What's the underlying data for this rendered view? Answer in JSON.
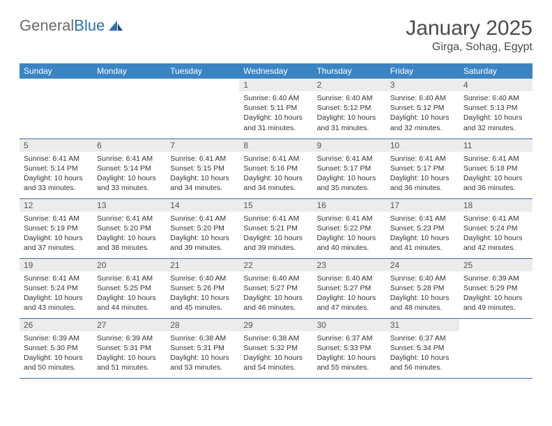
{
  "brand": {
    "word1": "General",
    "word2": "Blue"
  },
  "title": "January 2025",
  "location": "Girga, Sohag, Egypt",
  "colors": {
    "header_bg": "#3b84c4",
    "header_text": "#ffffff",
    "daynum_bg": "#ececec",
    "row_border": "#3b6ea0",
    "logo_gray": "#6a6a6a",
    "logo_blue": "#2f6fb3"
  },
  "weekdays": [
    "Sunday",
    "Monday",
    "Tuesday",
    "Wednesday",
    "Thursday",
    "Friday",
    "Saturday"
  ],
  "weeks": [
    [
      null,
      null,
      null,
      {
        "n": "1",
        "l1": "Sunrise: 6:40 AM",
        "l2": "Sunset: 5:11 PM",
        "l3": "Daylight: 10 hours",
        "l4": "and 31 minutes."
      },
      {
        "n": "2",
        "l1": "Sunrise: 6:40 AM",
        "l2": "Sunset: 5:12 PM",
        "l3": "Daylight: 10 hours",
        "l4": "and 31 minutes."
      },
      {
        "n": "3",
        "l1": "Sunrise: 6:40 AM",
        "l2": "Sunset: 5:12 PM",
        "l3": "Daylight: 10 hours",
        "l4": "and 32 minutes."
      },
      {
        "n": "4",
        "l1": "Sunrise: 6:40 AM",
        "l2": "Sunset: 5:13 PM",
        "l3": "Daylight: 10 hours",
        "l4": "and 32 minutes."
      }
    ],
    [
      {
        "n": "5",
        "l1": "Sunrise: 6:41 AM",
        "l2": "Sunset: 5:14 PM",
        "l3": "Daylight: 10 hours",
        "l4": "and 33 minutes."
      },
      {
        "n": "6",
        "l1": "Sunrise: 6:41 AM",
        "l2": "Sunset: 5:14 PM",
        "l3": "Daylight: 10 hours",
        "l4": "and 33 minutes."
      },
      {
        "n": "7",
        "l1": "Sunrise: 6:41 AM",
        "l2": "Sunset: 5:15 PM",
        "l3": "Daylight: 10 hours",
        "l4": "and 34 minutes."
      },
      {
        "n": "8",
        "l1": "Sunrise: 6:41 AM",
        "l2": "Sunset: 5:16 PM",
        "l3": "Daylight: 10 hours",
        "l4": "and 34 minutes."
      },
      {
        "n": "9",
        "l1": "Sunrise: 6:41 AM",
        "l2": "Sunset: 5:17 PM",
        "l3": "Daylight: 10 hours",
        "l4": "and 35 minutes."
      },
      {
        "n": "10",
        "l1": "Sunrise: 6:41 AM",
        "l2": "Sunset: 5:17 PM",
        "l3": "Daylight: 10 hours",
        "l4": "and 36 minutes."
      },
      {
        "n": "11",
        "l1": "Sunrise: 6:41 AM",
        "l2": "Sunset: 5:18 PM",
        "l3": "Daylight: 10 hours",
        "l4": "and 36 minutes."
      }
    ],
    [
      {
        "n": "12",
        "l1": "Sunrise: 6:41 AM",
        "l2": "Sunset: 5:19 PM",
        "l3": "Daylight: 10 hours",
        "l4": "and 37 minutes."
      },
      {
        "n": "13",
        "l1": "Sunrise: 6:41 AM",
        "l2": "Sunset: 5:20 PM",
        "l3": "Daylight: 10 hours",
        "l4": "and 38 minutes."
      },
      {
        "n": "14",
        "l1": "Sunrise: 6:41 AM",
        "l2": "Sunset: 5:20 PM",
        "l3": "Daylight: 10 hours",
        "l4": "and 39 minutes."
      },
      {
        "n": "15",
        "l1": "Sunrise: 6:41 AM",
        "l2": "Sunset: 5:21 PM",
        "l3": "Daylight: 10 hours",
        "l4": "and 39 minutes."
      },
      {
        "n": "16",
        "l1": "Sunrise: 6:41 AM",
        "l2": "Sunset: 5:22 PM",
        "l3": "Daylight: 10 hours",
        "l4": "and 40 minutes."
      },
      {
        "n": "17",
        "l1": "Sunrise: 6:41 AM",
        "l2": "Sunset: 5:23 PM",
        "l3": "Daylight: 10 hours",
        "l4": "and 41 minutes."
      },
      {
        "n": "18",
        "l1": "Sunrise: 6:41 AM",
        "l2": "Sunset: 5:24 PM",
        "l3": "Daylight: 10 hours",
        "l4": "and 42 minutes."
      }
    ],
    [
      {
        "n": "19",
        "l1": "Sunrise: 6:41 AM",
        "l2": "Sunset: 5:24 PM",
        "l3": "Daylight: 10 hours",
        "l4": "and 43 minutes."
      },
      {
        "n": "20",
        "l1": "Sunrise: 6:41 AM",
        "l2": "Sunset: 5:25 PM",
        "l3": "Daylight: 10 hours",
        "l4": "and 44 minutes."
      },
      {
        "n": "21",
        "l1": "Sunrise: 6:40 AM",
        "l2": "Sunset: 5:26 PM",
        "l3": "Daylight: 10 hours",
        "l4": "and 45 minutes."
      },
      {
        "n": "22",
        "l1": "Sunrise: 6:40 AM",
        "l2": "Sunset: 5:27 PM",
        "l3": "Daylight: 10 hours",
        "l4": "and 46 minutes."
      },
      {
        "n": "23",
        "l1": "Sunrise: 6:40 AM",
        "l2": "Sunset: 5:27 PM",
        "l3": "Daylight: 10 hours",
        "l4": "and 47 minutes."
      },
      {
        "n": "24",
        "l1": "Sunrise: 6:40 AM",
        "l2": "Sunset: 5:28 PM",
        "l3": "Daylight: 10 hours",
        "l4": "and 48 minutes."
      },
      {
        "n": "25",
        "l1": "Sunrise: 6:39 AM",
        "l2": "Sunset: 5:29 PM",
        "l3": "Daylight: 10 hours",
        "l4": "and 49 minutes."
      }
    ],
    [
      {
        "n": "26",
        "l1": "Sunrise: 6:39 AM",
        "l2": "Sunset: 5:30 PM",
        "l3": "Daylight: 10 hours",
        "l4": "and 50 minutes."
      },
      {
        "n": "27",
        "l1": "Sunrise: 6:39 AM",
        "l2": "Sunset: 5:31 PM",
        "l3": "Daylight: 10 hours",
        "l4": "and 51 minutes."
      },
      {
        "n": "28",
        "l1": "Sunrise: 6:38 AM",
        "l2": "Sunset: 5:31 PM",
        "l3": "Daylight: 10 hours",
        "l4": "and 53 minutes."
      },
      {
        "n": "29",
        "l1": "Sunrise: 6:38 AM",
        "l2": "Sunset: 5:32 PM",
        "l3": "Daylight: 10 hours",
        "l4": "and 54 minutes."
      },
      {
        "n": "30",
        "l1": "Sunrise: 6:37 AM",
        "l2": "Sunset: 5:33 PM",
        "l3": "Daylight: 10 hours",
        "l4": "and 55 minutes."
      },
      {
        "n": "31",
        "l1": "Sunrise: 6:37 AM",
        "l2": "Sunset: 5:34 PM",
        "l3": "Daylight: 10 hours",
        "l4": "and 56 minutes."
      },
      null
    ]
  ]
}
